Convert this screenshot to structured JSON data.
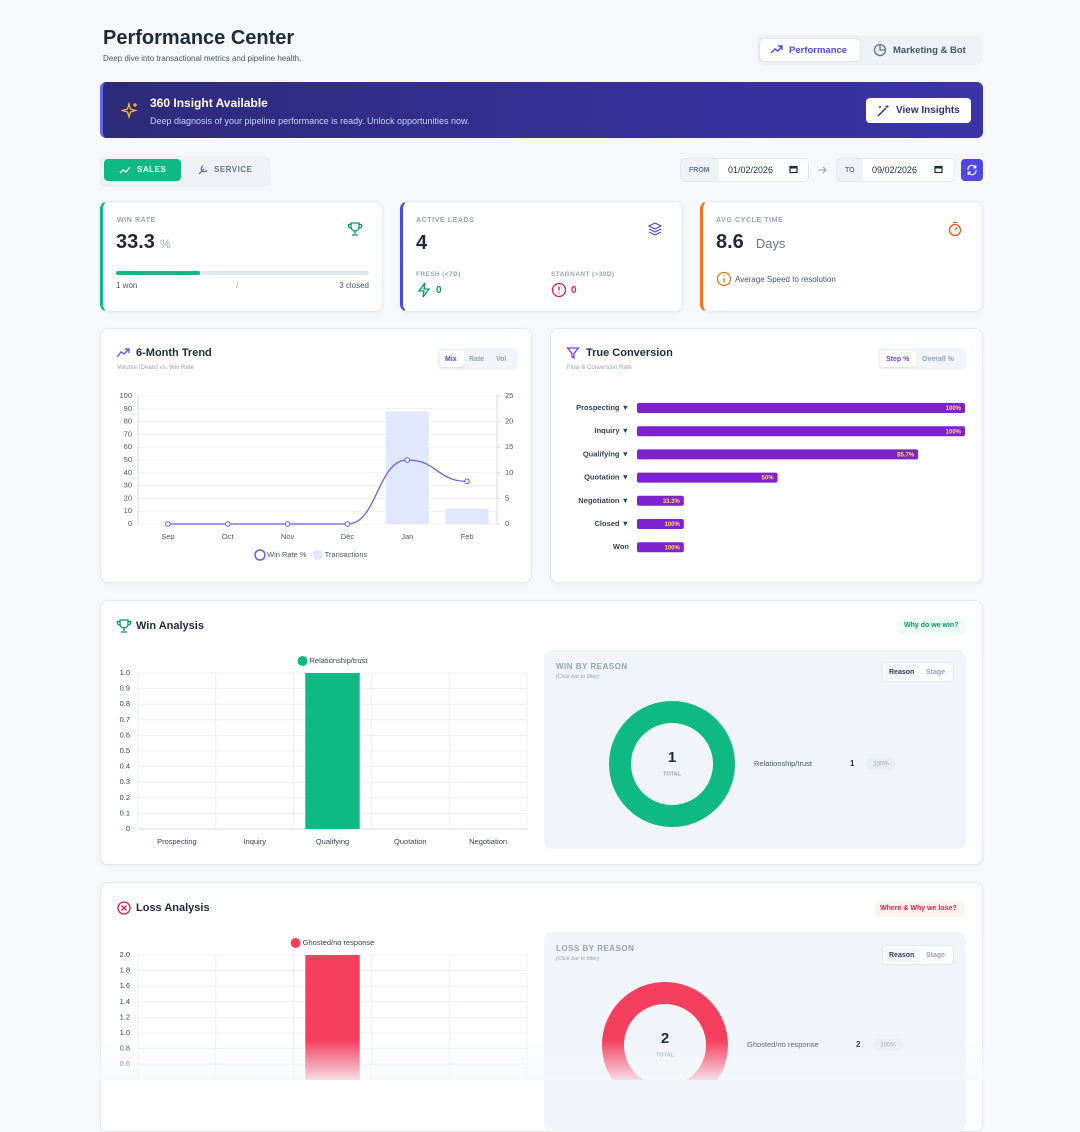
{
  "header": {
    "title": "Performance Center",
    "subtitle": "Deep dive into transactional metrics and pipeline health."
  },
  "view_tabs": [
    "Performance",
    "Marketing & Bot"
  ],
  "banner": {
    "title": "360 Insight Available",
    "text": "Deep diagnosis of your pipeline performance is ready. Unlock opportunities now.",
    "button": "View Insights"
  },
  "segments": [
    "SALES",
    "SERVICE"
  ],
  "date_range": {
    "from_label": "FROM",
    "from": "01/02/2026",
    "to_label": "TO",
    "to": "09/02/2026"
  },
  "kpis": {
    "win_rate": {
      "label": "WIN RATE",
      "value": 33.3,
      "unit": "%",
      "won": "1 won",
      "separator": "/",
      "closed": "3 closed"
    },
    "active_leads": {
      "label": "ACTIVE LEADS",
      "value": 4,
      "fresh_label": "FRESH (<7D)",
      "fresh": 0,
      "stagnant_label": "STAGNANT (>30D)",
      "stagnant": 0
    },
    "cycle_time": {
      "label": "AVG CYCLE TIME",
      "value": 8.6,
      "unit": "Days",
      "note": "Average Speed to resolution"
    }
  },
  "chart_data": [
    {
      "type": "combo",
      "title": "6-Month Trend",
      "subtitle": "Volume (Deals) vs. Win Rate",
      "toggles": [
        "Mix",
        "Rate",
        "Vol"
      ],
      "categories": [
        "Sep",
        "Oct",
        "Nov",
        "Dec",
        "Jan",
        "Feb"
      ],
      "series": [
        {
          "name": "Win Rate %",
          "type": "line",
          "color": "#6b5ce7",
          "values": [
            0,
            0,
            0,
            0,
            50,
            33.3
          ]
        },
        {
          "name": "Transactions",
          "type": "bar",
          "axis": "y2",
          "color": "#e0e7ff",
          "values": [
            0,
            0,
            0,
            0,
            22,
            3
          ]
        }
      ],
      "ylim": [
        0,
        100
      ],
      "yticks": [
        0,
        10,
        20,
        30,
        40,
        50,
        60,
        70,
        80,
        90,
        100
      ],
      "y2lim": [
        0,
        25
      ],
      "y2ticks": [
        0,
        5,
        10,
        15,
        20,
        25
      ],
      "grid": true
    },
    {
      "type": "hbar",
      "title": "True Conversion",
      "subtitle": "Flow & Conversion Rate",
      "toggles": [
        "Step %",
        "Overall %"
      ],
      "categories": [
        "Prospecting ▼",
        "Inquiry ▼",
        "Qualifying ▼",
        "Quotation ▼",
        "Negotiation ▼",
        "Closed ▼",
        "Won"
      ],
      "values": [
        7,
        7,
        6,
        3,
        1,
        1,
        1
      ],
      "xlim": [
        0,
        7
      ],
      "step_labels": [
        "100%",
        "100%",
        "85.7%",
        "50%",
        "33.3%",
        "100%",
        "100%"
      ],
      "color": "#7e22ce"
    },
    {
      "type": "bar",
      "title": "Win Analysis",
      "badge": "Why do we win?",
      "categories": [
        "Prospecting",
        "Inquiry",
        "Qualifying",
        "Quotation",
        "Negotiation"
      ],
      "series": [
        {
          "name": "Relationship/trust",
          "color": "#10b981",
          "values": [
            0,
            0,
            1,
            0,
            0
          ]
        }
      ],
      "ylim": [
        0,
        1
      ],
      "yticks": [
        0,
        0.1,
        0.2,
        0.3,
        0.4,
        0.5,
        0.6,
        0.7,
        0.8,
        0.9,
        {
          "value": 1,
          "label": "1.0"
        }
      ],
      "grid": true
    },
    {
      "type": "donut",
      "title": "WIN BY REASON",
      "subtitle": "(Click bar to filter)",
      "toggles": [
        "Reason",
        "Stage"
      ],
      "total": 1,
      "total_label": "TOTAL",
      "categories": [
        "Relationship/trust"
      ],
      "values": [
        1
      ],
      "share_labels": [
        "100%"
      ],
      "colors": [
        "#10b981"
      ]
    },
    {
      "type": "bar",
      "title": "Loss Analysis",
      "badge": "Where & Why we lose?",
      "series": [
        {
          "name": "Ghosted/no response",
          "color": "#f43f5e",
          "values": [
            0,
            0,
            2,
            0,
            0
          ]
        }
      ],
      "ylim": [
        0,
        2
      ],
      "yticks": [
        0.6,
        0.8,
        {
          "value": 1,
          "label": "1.0"
        },
        1.2,
        1.4,
        1.6,
        1.8,
        {
          "value": 2,
          "label": "2.0"
        }
      ],
      "grid": true
    },
    {
      "type": "donut",
      "title": "LOSS BY REASON",
      "subtitle": "(Click bar to filter)",
      "toggles": [
        "Reason",
        "Stage"
      ],
      "total": 2,
      "total_label": "TOTAL",
      "categories": [
        "Ghosted/no response"
      ],
      "values": [
        2
      ],
      "share_labels": [
        "100%"
      ],
      "colors": [
        "#f43f5e"
      ]
    }
  ]
}
